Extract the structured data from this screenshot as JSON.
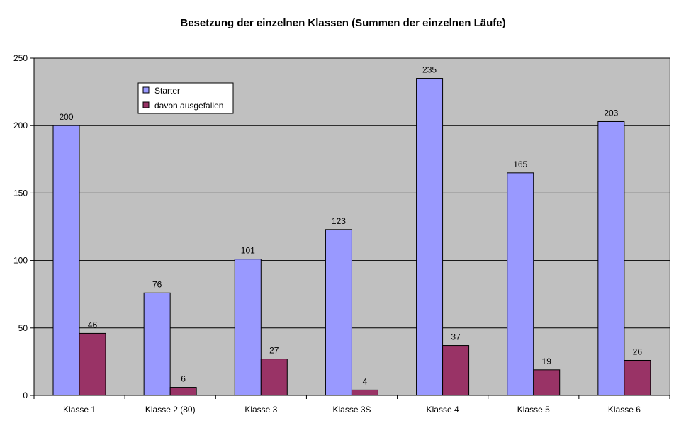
{
  "chart_data": {
    "type": "bar",
    "title": "Besetzung der einzelnen Klassen (Summen der einzelnen Läufe)",
    "categories": [
      "Klasse 1",
      "Klasse 2 (80)",
      "Klasse 3",
      "Klasse 3S",
      "Klasse 4",
      "Klasse 5",
      "Klasse 6"
    ],
    "series": [
      {
        "name": "Starter",
        "values": [
          200,
          76,
          101,
          123,
          235,
          165,
          203
        ],
        "color": "#9999ff"
      },
      {
        "name": "davon ausgefallen",
        "values": [
          46,
          6,
          27,
          4,
          37,
          19,
          26
        ],
        "color": "#993366"
      }
    ],
    "ylim": [
      0,
      250
    ],
    "yticks": [
      0,
      50,
      100,
      150,
      200,
      250
    ],
    "xlabel": "",
    "ylabel": "",
    "grid": true,
    "plot_background": "#c0c0c0",
    "legend_position": "top-left",
    "data_labels": true
  }
}
